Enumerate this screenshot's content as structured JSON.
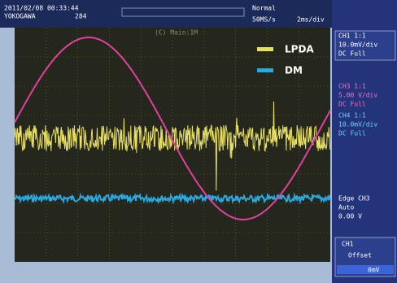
{
  "header": {
    "datetime": "2011/02/08 00:33:44",
    "brand": "YOKOGAWA",
    "count": "284",
    "mode": "Normal",
    "sample_rate": "50MS/s",
    "timebase": "2ms/div"
  },
  "screen_label": "(C) Main:1M",
  "legend": [
    {
      "label": "LPDA"
    },
    {
      "label": "DM"
    }
  ],
  "channels": [
    {
      "name": "CH1 1:1",
      "scale": "10.0mV/div",
      "coupling": "DC  Full"
    },
    {
      "name": "CH3 1:1",
      "scale": "5.00 V/div",
      "coupling": "DC  Full"
    },
    {
      "name": "CH4 1:1",
      "scale": "10.0mV/div",
      "coupling": "DC  Full"
    }
  ],
  "trigger": {
    "type": "Edge CH3",
    "mode": "Auto",
    "level": "0.00 V"
  },
  "offset": {
    "channel": "CH1",
    "label": "Offset",
    "value": "0mV"
  }
}
